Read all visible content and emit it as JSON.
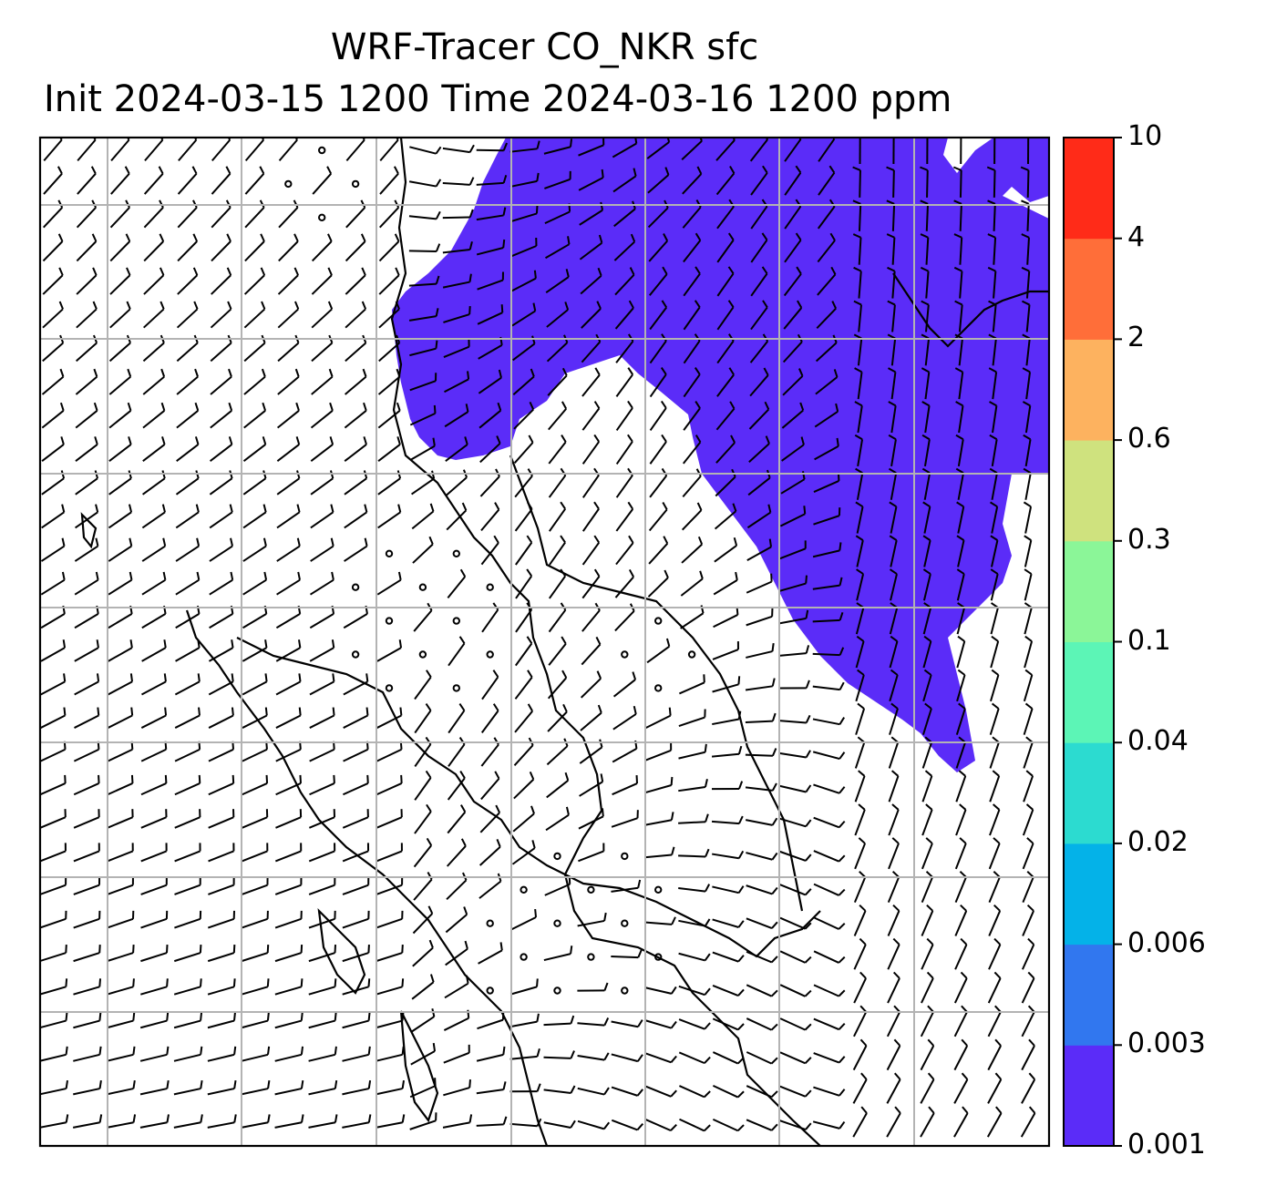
{
  "title": {
    "line1": "WRF-Tracer CO_NKR sfc",
    "line2": "Init 2024-03-15 1200 Time 2024-03-16 1200 ppm"
  },
  "colorbar": {
    "levels": [
      "0.001",
      "0.003",
      "0.006",
      "0.02",
      "0.04",
      "0.1",
      "0.3",
      "0.6",
      "2",
      "4",
      "10"
    ],
    "colors": [
      "#5b2cf8",
      "#3177ef",
      "#04b2e8",
      "#2cdbd0",
      "#5cf5b6",
      "#8bf698",
      "#cfe27e",
      "#fdb25f",
      "#ff6e39",
      "#ff2b18"
    ]
  },
  "field": {
    "plume_color": "#5b2cf8",
    "background": "#ffffff",
    "grid_color": "#b3b3b3"
  }
}
